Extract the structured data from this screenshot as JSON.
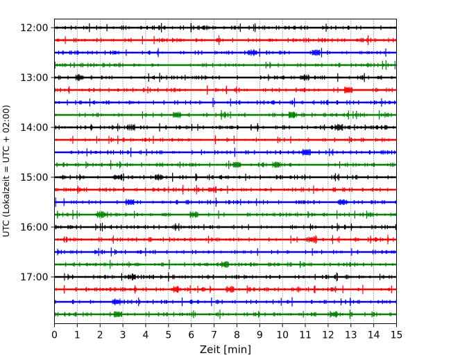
{
  "chart_data": {
    "type": "line",
    "title": "",
    "xlabel": "Zeit  [min]",
    "ylabel": "UTC (Lokalzeit = UTC + 02:00)",
    "xlim": [
      0,
      15
    ],
    "x_ticks": [
      "0",
      "1",
      "2",
      "3",
      "4",
      "5",
      "6",
      "7",
      "8",
      "9",
      "10",
      "11",
      "12",
      "13",
      "14",
      "15"
    ],
    "y_ticks": [
      "12:00",
      "13:00",
      "14:00",
      "15:00",
      "16:00",
      "17:00"
    ],
    "y_tick_traces": [
      0,
      4,
      8,
      12,
      16,
      20
    ],
    "trace_colors": [
      "#000000",
      "#ff0000",
      "#0000ff",
      "#008000"
    ],
    "grid": "vertical dotted lines at each minute",
    "series": [
      {
        "start": "12:00",
        "color": "#000000"
      },
      {
        "start": "12:15",
        "color": "#ff0000"
      },
      {
        "start": "12:30",
        "color": "#0000ff"
      },
      {
        "start": "12:45",
        "color": "#008000"
      },
      {
        "start": "13:00",
        "color": "#000000"
      },
      {
        "start": "13:15",
        "color": "#ff0000"
      },
      {
        "start": "13:30",
        "color": "#0000ff"
      },
      {
        "start": "13:45",
        "color": "#008000"
      },
      {
        "start": "14:00",
        "color": "#000000"
      },
      {
        "start": "14:15",
        "color": "#ff0000"
      },
      {
        "start": "14:30",
        "color": "#0000ff"
      },
      {
        "start": "14:45",
        "color": "#008000"
      },
      {
        "start": "15:00",
        "color": "#000000"
      },
      {
        "start": "15:15",
        "color": "#ff0000"
      },
      {
        "start": "15:30",
        "color": "#0000ff"
      },
      {
        "start": "15:45",
        "color": "#008000"
      },
      {
        "start": "16:00",
        "color": "#000000"
      },
      {
        "start": "16:15",
        "color": "#ff0000"
      },
      {
        "start": "16:30",
        "color": "#0000ff"
      },
      {
        "start": "16:45",
        "color": "#008000"
      },
      {
        "start": "17:00",
        "color": "#000000"
      },
      {
        "start": "17:15",
        "color": "#ff0000"
      },
      {
        "start": "17:30",
        "color": "#0000ff"
      },
      {
        "start": "17:45",
        "color": "#008000"
      }
    ]
  }
}
